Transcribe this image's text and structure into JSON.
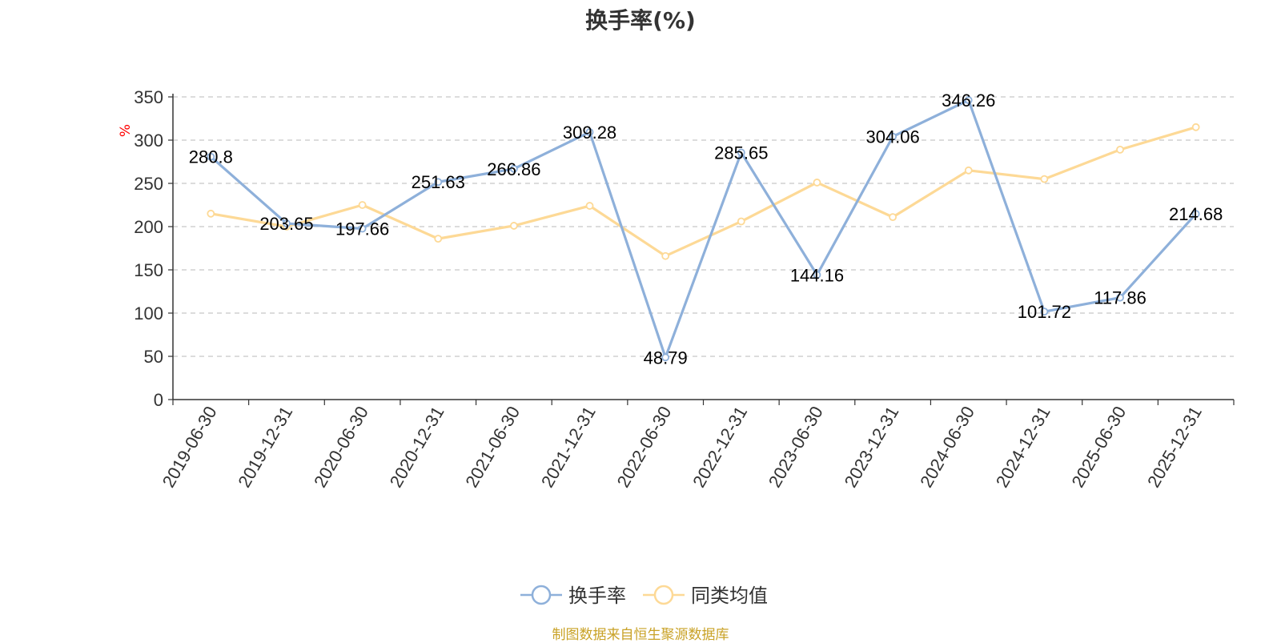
{
  "chart_data": {
    "type": "line",
    "title": "换手率(%)",
    "ylabel": "%",
    "ylim": [
      0,
      350
    ],
    "yticks": [
      0,
      50,
      100,
      150,
      200,
      250,
      300,
      350
    ],
    "grid": "horizontal dashed",
    "legend_position": "bottom",
    "categories": [
      "2019-06-30",
      "2019-12-31",
      "2020-06-30",
      "2020-12-31",
      "2021-06-30",
      "2021-12-31",
      "2022-06-30",
      "2022-12-31",
      "2023-06-30",
      "2023-12-31",
      "2024-06-30",
      "2024-12-31",
      "2025-06-30",
      "2025-12-31"
    ],
    "series": [
      {
        "name": "换手率",
        "color": "#8eb0da",
        "values": [
          280.8,
          203.65,
          197.66,
          251.63,
          266.86,
          309.28,
          48.79,
          285.65,
          144.16,
          304.06,
          346.26,
          101.72,
          117.86,
          214.68
        ],
        "labels": [
          "280.8",
          "203.65",
          "197.66",
          "251.63",
          "266.86",
          "309.28",
          "48.79",
          "285.65",
          "144.16",
          "304.06",
          "346.26",
          "101.72",
          "117.86",
          "214.68"
        ]
      },
      {
        "name": "同类均值",
        "color": "#fdd996",
        "values": [
          215,
          200,
          225,
          186,
          201,
          224,
          166,
          206,
          251,
          211,
          265,
          255,
          289,
          315
        ]
      }
    ]
  },
  "footer": {
    "source_text": "制图数据来自恒生聚源数据库"
  },
  "colors": {
    "axis": "#333333",
    "grid": "#c8c8c8",
    "ylabel": "#ff0000",
    "source": "#c9a227"
  }
}
